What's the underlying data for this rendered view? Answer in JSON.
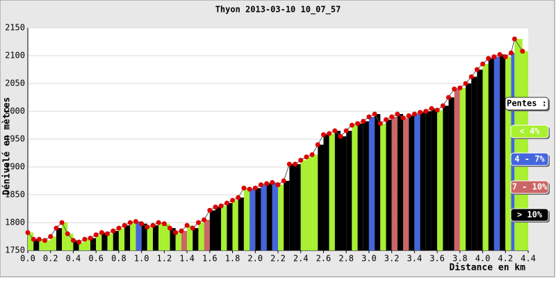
{
  "chart_data": {
    "type": "elevation",
    "title": "Thyon 2013-03-10 10_07_57",
    "y_label": "Dénivelé en mètres",
    "x_label": "Distance en km",
    "x": [
      0.0,
      0.05,
      0.1,
      0.15,
      0.2,
      0.25,
      0.3,
      0.35,
      0.4,
      0.45,
      0.5,
      0.55,
      0.6,
      0.65,
      0.7,
      0.75,
      0.8,
      0.85,
      0.9,
      0.95,
      1.0,
      1.05,
      1.1,
      1.15,
      1.2,
      1.25,
      1.3,
      1.35,
      1.4,
      1.45,
      1.5,
      1.55,
      1.6,
      1.65,
      1.7,
      1.75,
      1.8,
      1.85,
      1.9,
      1.95,
      2.0,
      2.05,
      2.1,
      2.15,
      2.2,
      2.25,
      2.3,
      2.35,
      2.4,
      2.45,
      2.5,
      2.55,
      2.6,
      2.65,
      2.7,
      2.75,
      2.8,
      2.85,
      2.9,
      2.95,
      3.0,
      3.05,
      3.1,
      3.15,
      3.2,
      3.25,
      3.3,
      3.35,
      3.4,
      3.45,
      3.5,
      3.55,
      3.6,
      3.65,
      3.7,
      3.75,
      3.8,
      3.85,
      3.9,
      3.95,
      4.0,
      4.05,
      4.1,
      4.15,
      4.2,
      4.25,
      4.28,
      4.35
    ],
    "values": [
      1782,
      1770,
      1770,
      1768,
      1775,
      1790,
      1800,
      1780,
      1768,
      1765,
      1770,
      1772,
      1778,
      1782,
      1780,
      1785,
      1790,
      1795,
      1800,
      1802,
      1798,
      1792,
      1795,
      1800,
      1798,
      1790,
      1782,
      1785,
      1795,
      1790,
      1800,
      1805,
      1822,
      1828,
      1830,
      1835,
      1840,
      1845,
      1862,
      1860,
      1862,
      1868,
      1870,
      1872,
      1868,
      1875,
      1905,
      1905,
      1912,
      1918,
      1922,
      1940,
      1958,
      1960,
      1965,
      1955,
      1965,
      1975,
      1978,
      1982,
      1990,
      1995,
      1978,
      1985,
      1990,
      1995,
      1988,
      1992,
      1995,
      1998,
      2000,
      2005,
      2002,
      2010,
      2025,
      2040,
      2042,
      2050,
      2062,
      2075,
      2085,
      2095,
      2098,
      2102,
      2098,
      2105,
      2130,
      2108
    ],
    "bar_colors": [
      "#a8f030",
      "#000000",
      "#a8f030",
      "#a8f030",
      "#a8f030",
      "#000000",
      "#a8f030",
      "#a8f030",
      "#000000",
      "#a8f030",
      "#a8f030",
      "#000000",
      "#a8f030",
      "#000000",
      "#a8f030",
      "#000000",
      "#a8f030",
      "#000000",
      "#a8f030",
      "#4466dd",
      "#000000",
      "#a8f030",
      "#000000",
      "#a8f030",
      "#a8f030",
      "#000000",
      "#a8f030",
      "#cc6666",
      "#a8f030",
      "#000000",
      "#a8f030",
      "#cc6666",
      "#000000",
      "#000000",
      "#a8f030",
      "#000000",
      "#a8f030",
      "#000000",
      "#a8f030",
      "#4466dd",
      "#000000",
      "#4466dd",
      "#000000",
      "#4466dd",
      "#a8f030",
      "#000000",
      "#000000",
      "#000000",
      "#a8f030",
      "#a8f030",
      "#a8f030",
      "#000000",
      "#000000",
      "#a8f030",
      "#000000",
      "#000000",
      "#000000",
      "#a8f030",
      "#000000",
      "#000000",
      "#4466dd",
      "#000000",
      "#a8f030",
      "#000000",
      "#cc6666",
      "#000000",
      "#cc6666",
      "#000000",
      "#4466dd",
      "#000000",
      "#000000",
      "#000000",
      "#a8f030",
      "#000000",
      "#000000",
      "#cc6666",
      "#a8f030",
      "#000000",
      "#000000",
      "#000000",
      "#a8f030",
      "#000000",
      "#4466dd",
      "#000000",
      "#a8f030",
      "#4466dd",
      "#a8f030",
      "#a8f030"
    ],
    "line_color": "#555555",
    "point_color": "#dd0000",
    "xlim": [
      0,
      4.4
    ],
    "ylim": [
      1750,
      2150
    ],
    "xticks": [
      {
        "value": 0,
        "label": "0.0"
      },
      0.2,
      0.4,
      0.6,
      0.8,
      {
        "value": 1,
        "label": "1.0"
      },
      1.2,
      1.4,
      1.6,
      1.8,
      {
        "value": 2,
        "label": "2.0"
      },
      2.2,
      2.4,
      2.6,
      2.8,
      {
        "value": 3,
        "label": "3.0"
      },
      3.2,
      3.4,
      3.6,
      3.8,
      {
        "value": 4,
        "label": "4.0"
      },
      4.2,
      4.4
    ],
    "yticks": [
      1750,
      1800,
      1850,
      1900,
      1950,
      2000,
      2050,
      2100,
      2150
    ],
    "grid": true,
    "legend": {
      "title": "Pentes :",
      "items": [
        {
          "label": "< 4%",
          "color": "#a8f030"
        },
        {
          "label": "4 - 7%",
          "color": "#4466dd"
        },
        {
          "label": "7 - 10%",
          "color": "#cc6666"
        },
        {
          "label": "> 10%",
          "color": "#000000"
        }
      ]
    }
  }
}
